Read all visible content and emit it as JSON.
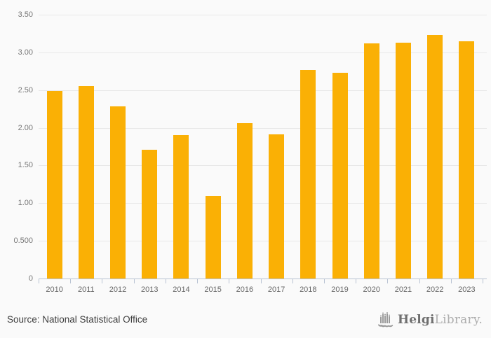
{
  "chart_data": {
    "type": "bar",
    "categories": [
      "2010",
      "2011",
      "2012",
      "2013",
      "2014",
      "2015",
      "2016",
      "2017",
      "2018",
      "2019",
      "2020",
      "2021",
      "2022",
      "2023"
    ],
    "values": [
      2.49,
      2.55,
      2.28,
      1.71,
      1.9,
      1.1,
      2.06,
      1.91,
      2.77,
      2.73,
      3.12,
      3.13,
      3.23,
      3.15
    ],
    "title": "",
    "xlabel": "",
    "ylabel": "",
    "ylim": [
      0,
      3.5
    ],
    "y_tick_labels_top_to_bottom": [
      "3.50",
      "3.00",
      "2.50",
      "2.00",
      "1.50",
      "1.00",
      "0.500",
      "0"
    ],
    "y_tick_step": 0.5,
    "grid": true,
    "legend": "none",
    "bar_color": "#FAB005"
  },
  "footer": {
    "source": "Source: National Statistical Office",
    "logo": {
      "brand_primary": "Helgi",
      "brand_secondary": "Library.",
      "icon": "bar-tower-icon",
      "icon_color": "#9a9a9a"
    }
  },
  "colors": {
    "background": "#FAFAFA",
    "bar": "#FAB005",
    "grid_line": "#E8E8E8",
    "axis_line": "#B9C3D3",
    "y_label_text": "#777777",
    "x_label_text": "#666666",
    "source_text": "#3D3D3D"
  }
}
